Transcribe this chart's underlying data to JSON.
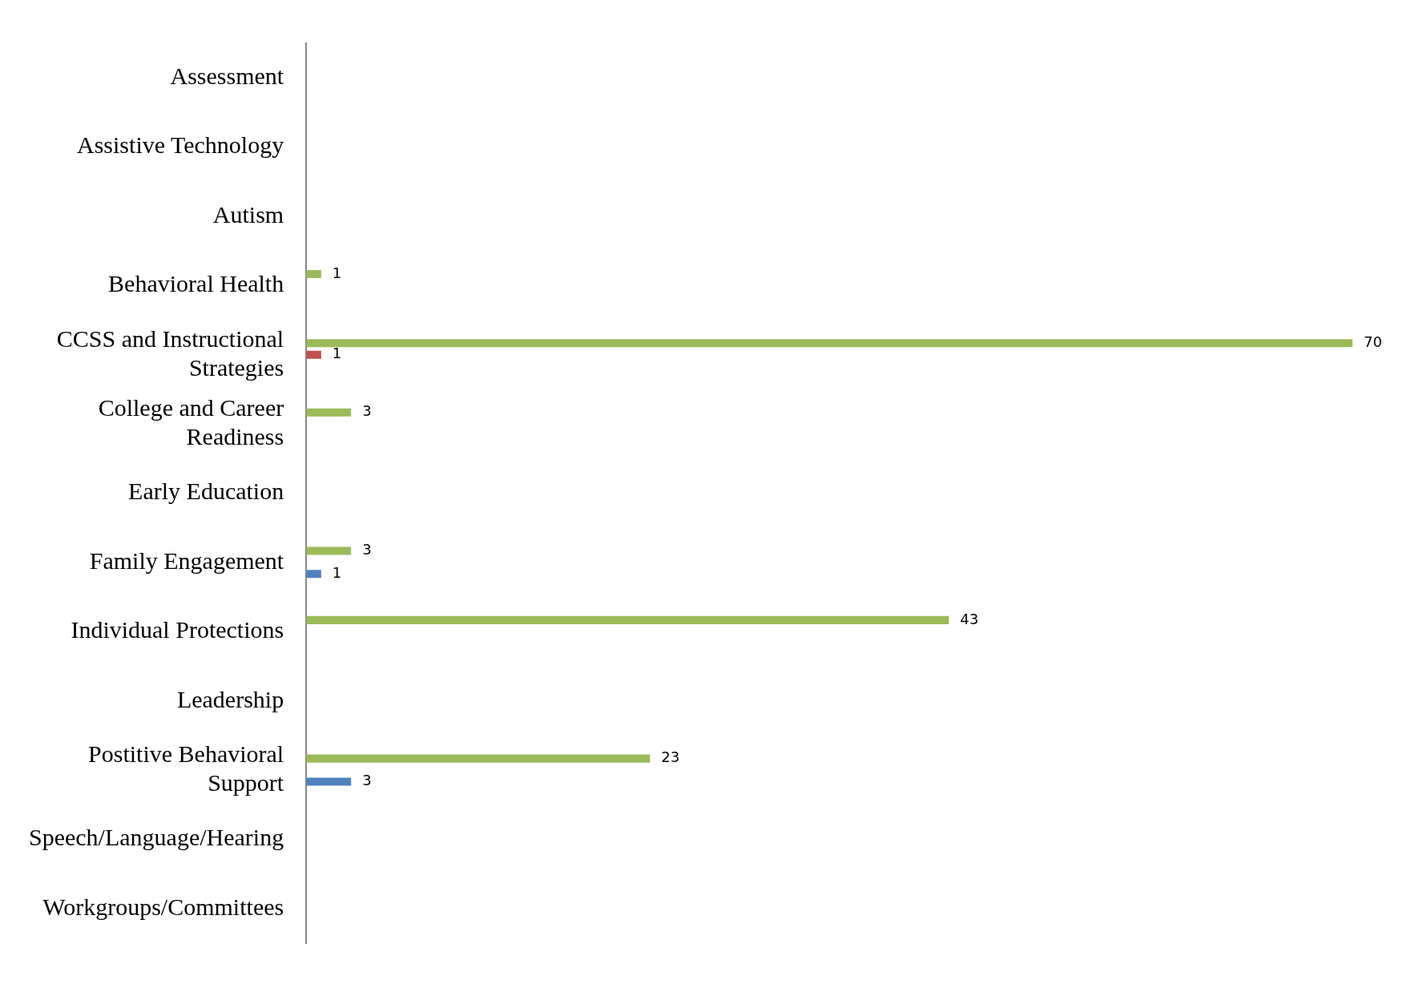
{
  "chart_data": {
    "type": "bar",
    "orientation": "horizontal",
    "data_labels": true,
    "legend": false,
    "categories": [
      "Assessment",
      "Assistive Technology",
      "Autism",
      "Behavioral Health",
      "CCSS and Instructional Strategies",
      "College and Career Readiness",
      "Early Education",
      "Family Engagement",
      "Individual Protections",
      "Leadership",
      "Postitive Behavioral Support",
      "Speech/Language/Hearing",
      "Workgroups/Committees"
    ],
    "series": [
      {
        "color": "#9bbb59",
        "values": [
          null,
          null,
          null,
          1,
          70,
          3,
          null,
          3,
          43,
          null,
          23,
          null,
          null
        ]
      },
      {
        "color": "#c0504d",
        "values": [
          null,
          null,
          null,
          null,
          1,
          null,
          null,
          null,
          null,
          null,
          null,
          null,
          null
        ]
      },
      {
        "color": "#4f81bd",
        "values": [
          null,
          null,
          null,
          null,
          null,
          null,
          null,
          1,
          null,
          null,
          3,
          null,
          null
        ]
      }
    ]
  }
}
